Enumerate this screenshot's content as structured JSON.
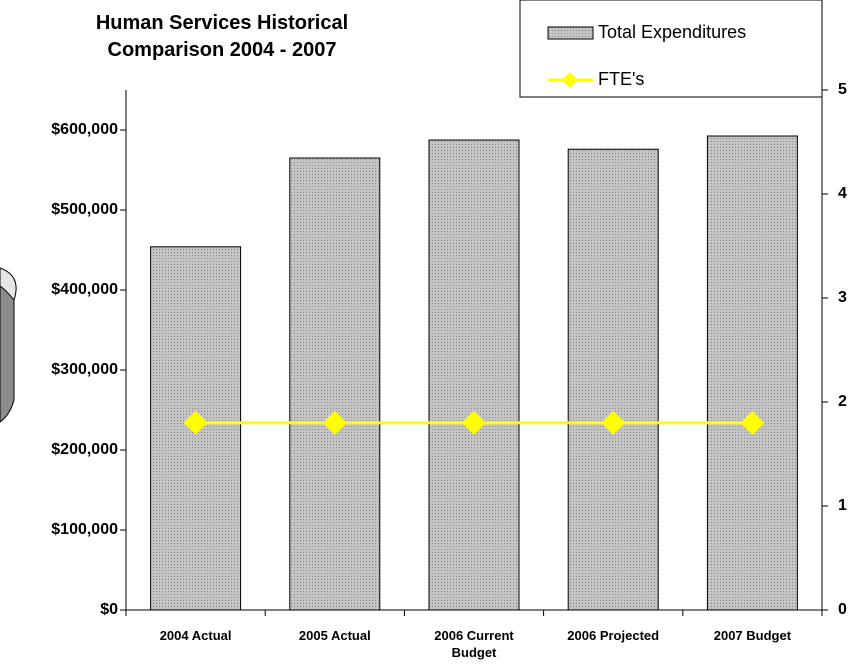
{
  "chart_data": {
    "type": "bar_line",
    "title": "Human Services Historical Comparison 2004 - 2007",
    "categories": [
      "2004 Actual",
      "2005  Actual",
      "2006 Current Budget",
      "2006 Projected",
      "2007 Budget"
    ],
    "series": [
      {
        "name": "Total Expenditures",
        "type": "bar",
        "color": "#b4b4b4",
        "values": [
          454000,
          565000,
          587500,
          576000,
          592500
        ]
      },
      {
        "name": "FTE's",
        "type": "line",
        "color": "#ffff00",
        "axis": "y2",
        "values": [
          1.8,
          1.8,
          1.8,
          1.8,
          1.8
        ]
      }
    ],
    "ylim": [
      0,
      650000
    ],
    "yticks": [
      {
        "value": 0,
        "label": "$0"
      },
      {
        "value": 100000,
        "label": "$100,000"
      },
      {
        "value": 200000,
        "label": "$200,000"
      },
      {
        "value": 300000,
        "label": "$300,000"
      },
      {
        "value": 400000,
        "label": "$400,000"
      },
      {
        "value": 500000,
        "label": "$500,000"
      },
      {
        "value": 600000,
        "label": "$600,000"
      }
    ],
    "y2lim": [
      0,
      5
    ],
    "y2ticks": [
      0,
      1,
      2,
      3,
      4,
      5
    ],
    "legend": "top-right"
  }
}
